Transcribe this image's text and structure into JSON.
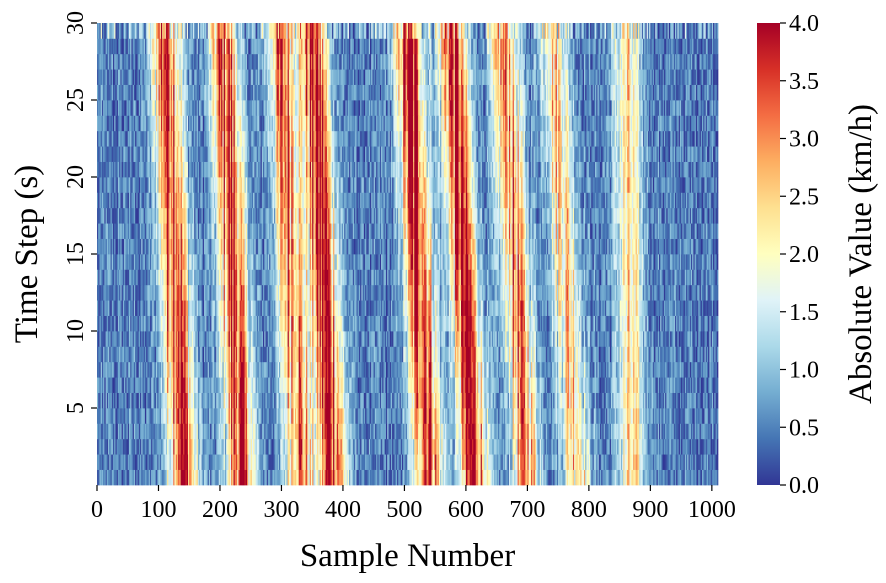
{
  "chart_data": {
    "type": "heatmap",
    "xlabel": "Sample Number",
    "ylabel": "Time Step (s)",
    "colorbar_label": "Absolute Value (km/h)",
    "x_range": [
      0,
      1010
    ],
    "y_range": [
      0,
      30
    ],
    "x_ticks": [
      "0",
      "100",
      "200",
      "300",
      "400",
      "500",
      "600",
      "700",
      "800",
      "900",
      "1000"
    ],
    "y_ticks": [
      "5",
      "10",
      "15",
      "20",
      "25",
      "30"
    ],
    "colorbar_range": [
      0.0,
      4.0
    ],
    "colorbar_ticks": [
      "0.0",
      "0.5",
      "1.0",
      "1.5",
      "2.0",
      "2.5",
      "3.0",
      "3.5",
      "4.0"
    ],
    "colormap": "RdYlBu_r",
    "colormap_stops": [
      "#313695",
      "#4575b4",
      "#74add1",
      "#abd9e9",
      "#e0f3f8",
      "#ffffbf",
      "#fee090",
      "#fdae61",
      "#f46d43",
      "#d73027",
      "#a50026"
    ],
    "grid": false,
    "high_value_bands": [
      {
        "x_at_t0": 140,
        "x_at_t30": 110,
        "peak": 3.9
      },
      {
        "x_at_t0": 235,
        "x_at_t30": 205,
        "peak": 3.6
      },
      {
        "x_at_t0": 330,
        "x_at_t30": 300,
        "peak": 3.2
      },
      {
        "x_at_t0": 385,
        "x_at_t30": 350,
        "peak": 3.9
      },
      {
        "x_at_t0": 540,
        "x_at_t30": 505,
        "peak": 4.0
      },
      {
        "x_at_t0": 615,
        "x_at_t30": 575,
        "peak": 3.8
      },
      {
        "x_at_t0": 700,
        "x_at_t30": 660,
        "peak": 2.9
      },
      {
        "x_at_t0": 780,
        "x_at_t30": 740,
        "peak": 2.4
      },
      {
        "x_at_t0": 870,
        "x_at_t30": 860,
        "peak": 1.9
      }
    ]
  }
}
